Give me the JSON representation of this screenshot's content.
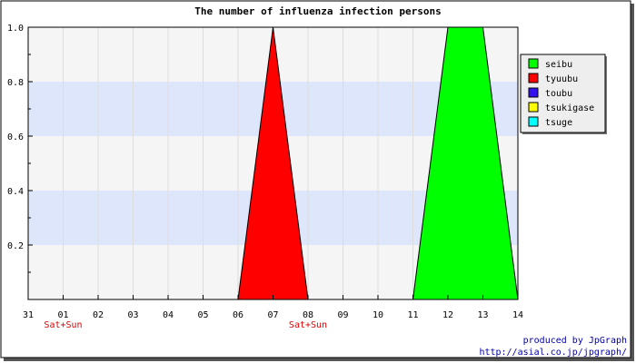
{
  "chart_data": {
    "type": "area",
    "title": "The number of influenza infection persons",
    "xlabel": "",
    "ylabel": "",
    "categories": [
      "31",
      "01",
      "02",
      "03",
      "04",
      "05",
      "06",
      "07",
      "08",
      "09",
      "10",
      "11",
      "12",
      "13",
      "14"
    ],
    "weekend_markers": [
      {
        "category": "01",
        "label": "Sat+Sun"
      },
      {
        "category": "08",
        "label": "Sat+Sun"
      }
    ],
    "y_ticks": [
      "0.2",
      "0.4",
      "0.6",
      "0.8",
      "1.0"
    ],
    "ylim": [
      0,
      1.0
    ],
    "legend_position": "right",
    "series": [
      {
        "name": "seibu",
        "color": "#00ff00",
        "values": [
          0,
          0,
          0,
          0,
          0,
          0,
          0,
          0,
          0,
          0,
          0,
          0,
          1,
          1,
          0
        ]
      },
      {
        "name": "tyuubu",
        "color": "#ff0000",
        "values": [
          0,
          0,
          0,
          0,
          0,
          0,
          0,
          1,
          0,
          0,
          0,
          0,
          0,
          0,
          0
        ]
      },
      {
        "name": "toubu",
        "color": "#3311ee",
        "values": [
          0,
          0,
          0,
          0,
          0,
          0,
          0,
          0,
          0,
          0,
          0,
          0,
          0,
          0,
          0
        ]
      },
      {
        "name": "tsukigase",
        "color": "#ffff00",
        "values": [
          0,
          0,
          0,
          0,
          0,
          0,
          0,
          0,
          0,
          0,
          0,
          0,
          0,
          0,
          0
        ]
      },
      {
        "name": "tsuge",
        "color": "#00ffff",
        "values": [
          0,
          0,
          0,
          0,
          0,
          0,
          0,
          0,
          0,
          0,
          0,
          0,
          0,
          0,
          0
        ]
      }
    ]
  },
  "credit": {
    "line1": "produced by JpGraph",
    "line2": "http://asial.co.jp/jpgraph/"
  }
}
